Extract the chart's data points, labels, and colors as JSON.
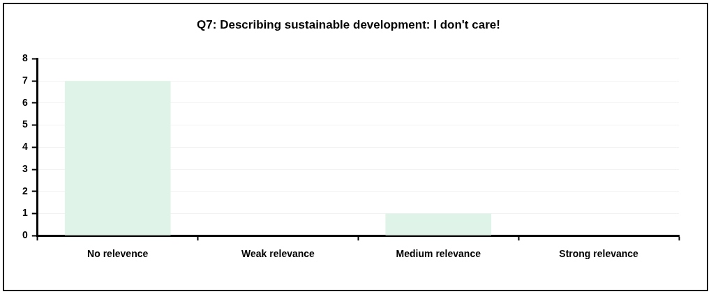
{
  "chart_data": {
    "type": "bar",
    "title": "Q7: Describing sustainable development: I don't care!",
    "categories": [
      "No relevence",
      "Weak relevance",
      "Medium relevance",
      "Strong relevance"
    ],
    "values": [
      7,
      0,
      1,
      0
    ],
    "color": "#e0f3e9",
    "ylim": [
      0,
      8
    ],
    "yticks": [
      0,
      1,
      2,
      3,
      4,
      5,
      6,
      7,
      8
    ],
    "grid": "y",
    "legend": false
  }
}
